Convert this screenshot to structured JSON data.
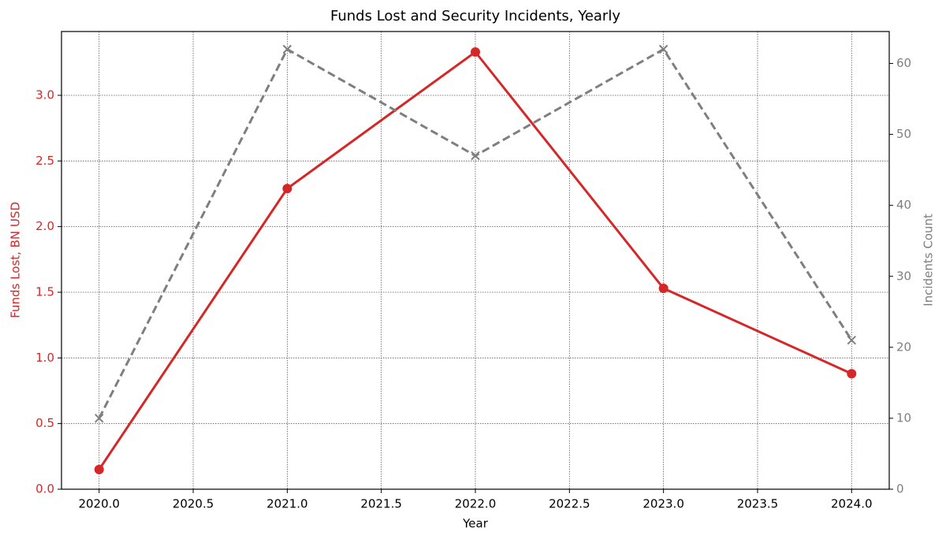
{
  "chart_data": {
    "type": "line",
    "title": "Funds Lost and Security Incidents, Yearly",
    "x_label": "Year",
    "y_label": "Funds Lost, BN USD",
    "y2_label": "Incidents Count",
    "x": [
      2020,
      2021,
      2022,
      2023,
      2024
    ],
    "series": [
      {
        "name": "Funds Lost",
        "color": "#d62728",
        "marker": "circle",
        "dash": false,
        "values": [
          0.15,
          2.29,
          3.33,
          1.53,
          0.88
        ]
      },
      {
        "name": "Incidents",
        "color": "#7f7f7f",
        "marker": "x",
        "dash": true,
        "axis": "y2",
        "values": [
          10,
          62,
          47,
          62,
          21
        ]
      }
    ],
    "xlim": [
      2019.8,
      2024.2
    ],
    "xticks": [
      {
        "value": 2020,
        "label": "2020.0"
      },
      2020.5,
      {
        "value": 2021,
        "label": "2021.0"
      },
      2021.5,
      {
        "value": 2022,
        "label": "2022.0"
      },
      2022.5,
      {
        "value": 2023,
        "label": "2023.0"
      },
      2023.5,
      {
        "value": 2024,
        "label": "2024.0"
      }
    ],
    "ylim": [
      0,
      3.486
    ],
    "yticks": [
      {
        "value": 0,
        "label": "0.0"
      },
      0.5,
      {
        "value": 1,
        "label": "1.0"
      },
      1.5,
      {
        "value": 2,
        "label": "2.0"
      },
      2.5,
      {
        "value": 3,
        "label": "3.0"
      }
    ],
    "y2lim": [
      0,
      64.5
    ],
    "y2ticks": [
      0,
      10,
      20,
      30,
      40,
      50,
      60
    ],
    "grid": true
  }
}
